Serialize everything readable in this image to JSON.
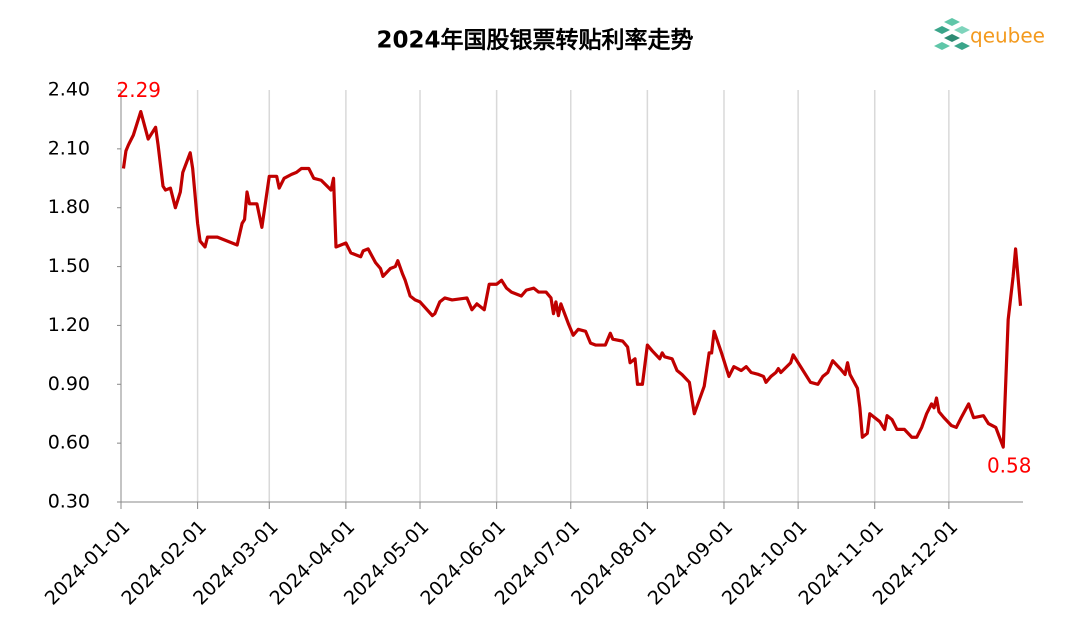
{
  "chart_data": {
    "type": "line",
    "title": "2024年国股银票转贴利率走势",
    "logo_text": "qeubee",
    "x": [
      "2024-01-02",
      "2024-01-03",
      "2024-01-04",
      "2024-01-06",
      "2024-01-09",
      "2024-01-12",
      "2024-01-15",
      "2024-01-16",
      "2024-01-18",
      "2024-01-19",
      "2024-01-21",
      "2024-01-23",
      "2024-01-25",
      "2024-01-26",
      "2024-01-29",
      "2024-01-30",
      "2024-02-01",
      "2024-02-02",
      "2024-02-04",
      "2024-02-05",
      "2024-02-09",
      "2024-02-17",
      "2024-02-19",
      "2024-02-20",
      "2024-02-21",
      "2024-02-22",
      "2024-02-25",
      "2024-02-27",
      "2024-03-01",
      "2024-03-04",
      "2024-03-05",
      "2024-03-07",
      "2024-03-10",
      "2024-03-12",
      "2024-03-14",
      "2024-03-17",
      "2024-03-19",
      "2024-03-22",
      "2024-03-26",
      "2024-03-27",
      "2024-03-28",
      "2024-04-01",
      "2024-04-03",
      "2024-04-07",
      "2024-04-08",
      "2024-04-10",
      "2024-04-13",
      "2024-04-15",
      "2024-04-16",
      "2024-04-19",
      "2024-04-21",
      "2024-04-22",
      "2024-04-24",
      "2024-04-25",
      "2024-04-27",
      "2024-04-29",
      "2024-05-01",
      "2024-05-06",
      "2024-05-07",
      "2024-05-09",
      "2024-05-11",
      "2024-05-14",
      "2024-05-20",
      "2024-05-22",
      "2024-05-24",
      "2024-05-27",
      "2024-05-29",
      "2024-06-01",
      "2024-06-03",
      "2024-06-05",
      "2024-06-07",
      "2024-06-11",
      "2024-06-13",
      "2024-06-16",
      "2024-06-18",
      "2024-06-21",
      "2024-06-23",
      "2024-06-24",
      "2024-06-25",
      "2024-06-26",
      "2024-06-27",
      "2024-06-30",
      "2024-07-02",
      "2024-07-04",
      "2024-07-07",
      "2024-07-09",
      "2024-07-11",
      "2024-07-15",
      "2024-07-17",
      "2024-07-18",
      "2024-07-22",
      "2024-07-24",
      "2024-07-25",
      "2024-07-27",
      "2024-07-28",
      "2024-07-30",
      "2024-08-01",
      "2024-08-03",
      "2024-08-06",
      "2024-08-07",
      "2024-08-08",
      "2024-08-11",
      "2024-08-13",
      "2024-08-15",
      "2024-08-18",
      "2024-08-20",
      "2024-08-22",
      "2024-08-24",
      "2024-08-26",
      "2024-08-27",
      "2024-08-28",
      "2024-08-31",
      "2024-09-03",
      "2024-09-05",
      "2024-09-08",
      "2024-09-10",
      "2024-09-12",
      "2024-09-15",
      "2024-09-17",
      "2024-09-18",
      "2024-09-20",
      "2024-09-22",
      "2024-09-23",
      "2024-09-24",
      "2024-09-28",
      "2024-09-29",
      "2024-10-02",
      "2024-10-06",
      "2024-10-09",
      "2024-10-11",
      "2024-10-13",
      "2024-10-15",
      "2024-10-18",
      "2024-10-20",
      "2024-10-21",
      "2024-10-22",
      "2024-10-25",
      "2024-10-26",
      "2024-10-27",
      "2024-10-29",
      "2024-10-30",
      "2024-11-03",
      "2024-11-05",
      "2024-11-06",
      "2024-11-08",
      "2024-11-10",
      "2024-11-13",
      "2024-11-16",
      "2024-11-18",
      "2024-11-20",
      "2024-11-22",
      "2024-11-24",
      "2024-11-25",
      "2024-11-26",
      "2024-11-27",
      "2024-11-29",
      "2024-12-02",
      "2024-12-04",
      "2024-12-06",
      "2024-12-09",
      "2024-12-11",
      "2024-12-15",
      "2024-12-17",
      "2024-12-20",
      "2024-12-23",
      "2024-12-25",
      "2024-12-27",
      "2024-12-28",
      "2024-12-30"
    ],
    "series": [
      {
        "color": "#c00000",
        "values": [
          2.0,
          2.09,
          2.12,
          2.17,
          2.29,
          2.15,
          2.21,
          2.12,
          1.91,
          1.89,
          1.9,
          1.8,
          1.88,
          1.98,
          2.08,
          2.0,
          1.72,
          1.63,
          1.6,
          1.65,
          1.65,
          1.61,
          1.72,
          1.74,
          1.88,
          1.82,
          1.82,
          1.7,
          1.96,
          1.96,
          1.9,
          1.95,
          1.97,
          1.98,
          2.0,
          2.0,
          1.95,
          1.94,
          1.89,
          1.95,
          1.6,
          1.62,
          1.57,
          1.55,
          1.58,
          1.59,
          1.52,
          1.49,
          1.45,
          1.49,
          1.5,
          1.53,
          1.46,
          1.43,
          1.35,
          1.33,
          1.32,
          1.25,
          1.26,
          1.32,
          1.34,
          1.33,
          1.34,
          1.28,
          1.31,
          1.28,
          1.41,
          1.41,
          1.43,
          1.39,
          1.37,
          1.35,
          1.38,
          1.39,
          1.37,
          1.37,
          1.34,
          1.26,
          1.32,
          1.25,
          1.31,
          1.21,
          1.15,
          1.18,
          1.17,
          1.11,
          1.1,
          1.1,
          1.16,
          1.13,
          1.12,
          1.09,
          1.01,
          1.03,
          0.9,
          0.9,
          1.1,
          1.07,
          1.03,
          1.06,
          1.04,
          1.03,
          0.97,
          0.95,
          0.91,
          0.75,
          0.82,
          0.89,
          1.06,
          1.06,
          1.17,
          1.06,
          0.94,
          0.99,
          0.97,
          0.99,
          0.96,
          0.95,
          0.94,
          0.91,
          0.94,
          0.96,
          0.98,
          0.96,
          1.01,
          1.05,
          0.99,
          0.91,
          0.9,
          0.94,
          0.96,
          1.02,
          0.98,
          0.95,
          1.01,
          0.95,
          0.88,
          0.78,
          0.63,
          0.65,
          0.75,
          0.71,
          0.67,
          0.74,
          0.72,
          0.67,
          0.67,
          0.63,
          0.63,
          0.68,
          0.75,
          0.8,
          0.78,
          0.83,
          0.76,
          0.73,
          0.69,
          0.68,
          0.73,
          0.8,
          0.73,
          0.74,
          0.7,
          0.68,
          0.58,
          1.23,
          1.45,
          1.59,
          1.3
        ]
      }
    ],
    "annotations": [
      {
        "text": "2.29",
        "x": "2024-01-09",
        "y": 2.29
      },
      {
        "text": "0.58",
        "x": "2024-12-23",
        "y": 0.58
      }
    ],
    "annotation_color": "#ff0000",
    "xlim": [
      "2024-01-01",
      "2024-12-31"
    ],
    "xticks": [
      "2024-01-01",
      "2024-02-01",
      "2024-03-01",
      "2024-04-01",
      "2024-05-01",
      "2024-06-01",
      "2024-07-01",
      "2024-08-01",
      "2024-09-01",
      "2024-10-01",
      "2024-11-01",
      "2024-12-01"
    ],
    "ylim": [
      0.3,
      2.4
    ],
    "yticks": [
      {
        "value": 0.3,
        "label": "0.30"
      },
      {
        "value": 0.6,
        "label": "0.60"
      },
      {
        "value": 0.9,
        "label": "0.90"
      },
      {
        "value": 1.2,
        "label": "1.20"
      },
      {
        "value": 1.5,
        "label": "1.50"
      },
      {
        "value": 1.8,
        "label": "1.80"
      },
      {
        "value": 2.1,
        "label": "2.10"
      },
      {
        "value": 2.4,
        "label": "2.40"
      }
    ],
    "xgrid": true,
    "grid_color": "#d9d9d9"
  }
}
